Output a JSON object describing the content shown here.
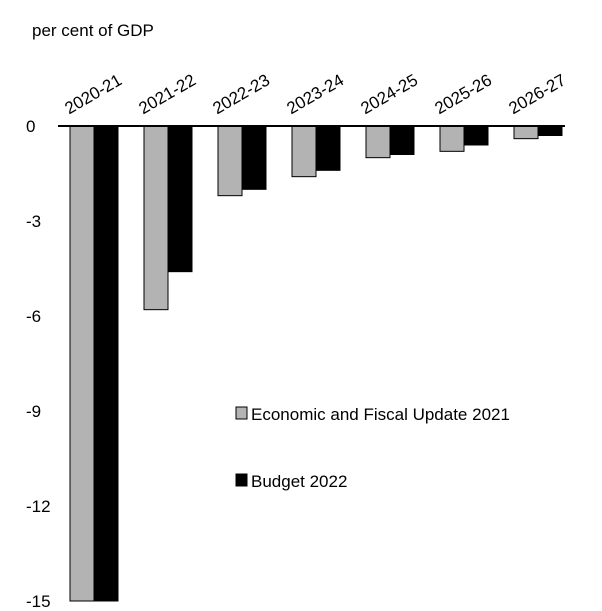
{
  "chart_data": {
    "type": "bar",
    "ylabel": "per cent of GDP",
    "categories": [
      "2020-21",
      "2021-22",
      "2022-23",
      "2023-24",
      "2024-25",
      "2025-26",
      "2026-27"
    ],
    "series": [
      {
        "name": "Economic and Fiscal Update 2021",
        "color": "#b3b3b3",
        "values": [
          -15.0,
          -5.8,
          -2.2,
          -1.6,
          -1.0,
          -0.8,
          -0.4
        ]
      },
      {
        "name": "Budget 2022",
        "color": "#000000",
        "values": [
          -15.0,
          -4.6,
          -2.0,
          -1.4,
          -0.9,
          -0.6,
          -0.3
        ]
      }
    ],
    "ylim": [
      -15,
      0
    ],
    "yticks": [
      "0",
      "-3",
      "-6",
      "-9",
      "-12",
      "-15"
    ],
    "ytick_values": [
      0,
      -3,
      -6,
      -9,
      -12,
      -15
    ],
    "grid": false,
    "legend_position": "center-right"
  }
}
